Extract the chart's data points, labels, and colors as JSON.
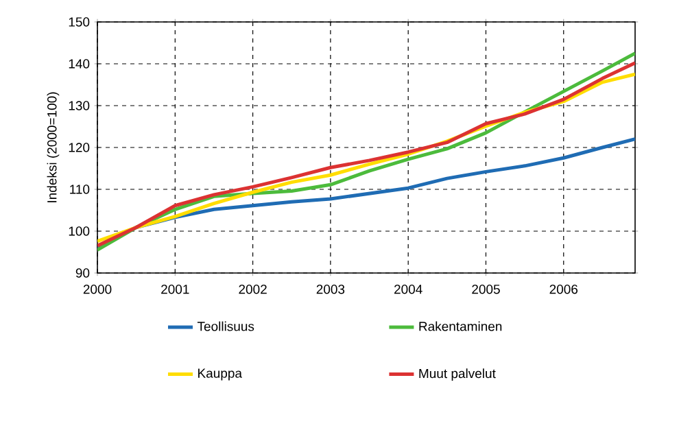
{
  "chart_data": {
    "type": "line",
    "ylabel": "Indeksi (2000=100)",
    "x": [
      2000,
      2000.5,
      2001,
      2001.5,
      2002,
      2002.5,
      2003,
      2003.5,
      2004,
      2004.5,
      2005,
      2005.5,
      2006,
      2006.5,
      2006.92
    ],
    "series": [
      {
        "name": "Teollisuus",
        "color": "#1f6cb4",
        "values": [
          96,
          100.9,
          103.3,
          105.2,
          106.1,
          107,
          107.7,
          109,
          110.3,
          112.6,
          114.2,
          115.6,
          117.5,
          120,
          122
        ]
      },
      {
        "name": "Rakentaminen",
        "color": "#4cbb3c",
        "values": [
          95.5,
          100.9,
          105.2,
          108.3,
          109,
          109.6,
          111.1,
          114.4,
          117.2,
          119.7,
          123.5,
          128.5,
          133.4,
          138.3,
          142.5
        ]
      },
      {
        "name": "Kauppa",
        "color": "#ffdd00",
        "values": [
          97.6,
          100.9,
          103.5,
          106.6,
          109.3,
          111.7,
          113.4,
          116,
          118.4,
          121.5,
          125.1,
          128.4,
          131,
          135.6,
          137.5
        ]
      },
      {
        "name": "Muut palvelut",
        "color": "#dc3232",
        "values": [
          96.5,
          100.9,
          106.1,
          108.7,
          110.6,
          112.8,
          115.2,
          116.9,
          118.9,
          121.2,
          125.7,
          128,
          131.5,
          136.5,
          140.2
        ]
      }
    ],
    "xlim": [
      2000,
      2006.92
    ],
    "xticks": [
      2000,
      2001,
      2002,
      2003,
      2004,
      2005,
      2006
    ],
    "ylim": [
      90,
      150
    ],
    "yticks": [
      90,
      100,
      110,
      120,
      130,
      140,
      150
    ],
    "grid": true,
    "legend": "bottom",
    "line_style": "solid",
    "marker": "none"
  }
}
